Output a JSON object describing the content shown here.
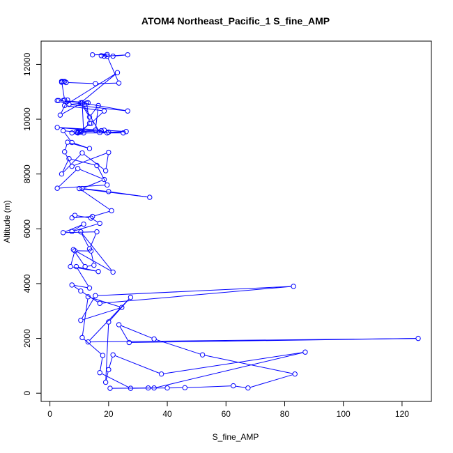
{
  "chart_data": {
    "type": "line",
    "title": "ATOM4 Northeast_Pacific_1 S_fine_AMP",
    "xlabel": "S_fine_AMP",
    "ylabel": "Altitude (m)",
    "xlim": [
      -3,
      130
    ],
    "ylim": [
      -300,
      12850
    ],
    "x_ticks": [
      0,
      20,
      40,
      60,
      80,
      100,
      120
    ],
    "y_ticks": [
      0,
      2000,
      4000,
      6000,
      8000,
      10000,
      12000
    ],
    "grid": false,
    "legend": "none",
    "color": "#0000ff",
    "series": [
      {
        "x": [
          20.5,
          33.5,
          40,
          46,
          62.5,
          67.5,
          83.5,
          52,
          35.5,
          23.5,
          27,
          125.5,
          13,
          27.5,
          20,
          19,
          20,
          21.5,
          38,
          87,
          35.5,
          27.5,
          17,
          18,
          11,
          13,
          24.5,
          10.5,
          15.5,
          83,
          17,
          10.5,
          7.5,
          13.5,
          9,
          16.5,
          7,
          8.5,
          14,
          15,
          12,
          8,
          21.5,
          10.5,
          13.5,
          16,
          4.5,
          11.5,
          7.5,
          17,
          14,
          8.5,
          7.5,
          14.5,
          21,
          10,
          34,
          20,
          11,
          18.5,
          9.5,
          2.5,
          19.5,
          16,
          6.5,
          4,
          11,
          19,
          20,
          7.5,
          5,
          6,
          13.5,
          7.5,
          4.5,
          9,
          17.5,
          10,
          15.5,
          16.5,
          13.5,
          10.5,
          23,
          5,
          18.5,
          14,
          9.5,
          11.5,
          11,
          17,
          26,
          18.5,
          2.5,
          20,
          25,
          19.5,
          7.5,
          9.5,
          10.5,
          13.5,
          12.5,
          11,
          3.5,
          6,
          4.5,
          13,
          6.5,
          26.5,
          11,
          3,
          2.5,
          5,
          4,
          5.5,
          4,
          5,
          4.5,
          5.5,
          15.5,
          23.5,
          19.5,
          18.5,
          26.5,
          21.5,
          17.5,
          19.5,
          14.5
        ],
        "y": [
          180,
          190,
          190,
          200,
          270,
          190,
          700,
          1400,
          1980,
          2500,
          1850,
          2000,
          1870,
          3500,
          2600,
          400,
          860,
          1400,
          700,
          1500,
          190,
          180,
          750,
          1380,
          2030,
          3520,
          3130,
          2660,
          3560,
          3900,
          3280,
          3730,
          3950,
          3840,
          4620,
          4440,
          4620,
          5200,
          5190,
          4670,
          4620,
          5240,
          4420,
          5890,
          5270,
          5890,
          5860,
          6170,
          5900,
          6200,
          6390,
          6490,
          6400,
          6450,
          6660,
          7470,
          7150,
          7360,
          7470,
          7800,
          8200,
          7480,
          7600,
          8310,
          8560,
          8000,
          8770,
          8120,
          8790,
          8280,
          8810,
          9160,
          8930,
          9150,
          9580,
          9530,
          9580,
          9540,
          9600,
          10500,
          10080,
          10600,
          11700,
          10500,
          10300,
          9850,
          9520,
          9500,
          10600,
          9510,
          9550,
          9600,
          9700,
          9530,
          9500,
          9500,
          9500,
          9500,
          9530,
          9850,
          10590,
          10600,
          10150,
          10700,
          10680,
          10600,
          10540,
          10300,
          10600,
          10680,
          10680,
          10700,
          11380,
          11340,
          11350,
          11380,
          11380,
          11340,
          11300,
          11320,
          12300,
          12300,
          12350,
          12300,
          12320,
          12360,
          12350
        ]
      }
    ]
  }
}
